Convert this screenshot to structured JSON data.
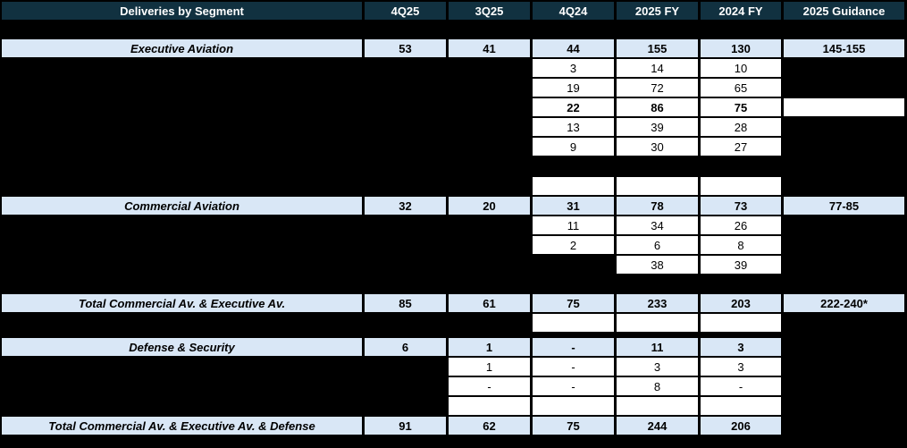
{
  "colors": {
    "header_bg": "#113140",
    "header_text": "#FFFFFF",
    "highlight_row_bg": "#D9E7F6",
    "cell_bg": "#FFFFFF",
    "background": "#000000",
    "body_text": "#000000"
  },
  "table": {
    "header": [
      "Deliveries by Segment",
      "4Q25",
      "3Q25",
      "4Q24",
      "2025 FY",
      "2024 FY",
      "2025 Guidance"
    ],
    "rows": [
      {
        "name": "executive-aviation",
        "cells": [
          "Executive Aviation",
          "53",
          "41",
          "44",
          "155",
          "130",
          "145-155"
        ]
      },
      {
        "name": "executive-sub-1",
        "cells": [
          "",
          "",
          "",
          "3",
          "14",
          "10",
          ""
        ]
      },
      {
        "name": "executive-sub-2",
        "cells": [
          "",
          "",
          "",
          "19",
          "72",
          "65",
          ""
        ]
      },
      {
        "name": "executive-sub-3-bold",
        "cells": [
          "",
          "",
          "",
          "22",
          "86",
          "75",
          ""
        ]
      },
      {
        "name": "executive-sub-4",
        "cells": [
          "",
          "",
          "",
          "13",
          "39",
          "28",
          ""
        ]
      },
      {
        "name": "executive-sub-5",
        "cells": [
          "",
          "",
          "",
          "9",
          "30",
          "27",
          ""
        ]
      },
      {
        "name": "empty-row-1",
        "cells": [
          "",
          "",
          "",
          "",
          "",
          "",
          ""
        ]
      },
      {
        "name": "commercial-aviation",
        "cells": [
          "Commercial Aviation",
          "32",
          "20",
          "31",
          "78",
          "73",
          "77-85"
        ]
      },
      {
        "name": "commercial-sub-1",
        "cells": [
          "",
          "",
          "",
          "11",
          "34",
          "26",
          ""
        ]
      },
      {
        "name": "commercial-sub-2",
        "cells": [
          "",
          "",
          "",
          "2",
          "6",
          "8",
          ""
        ]
      },
      {
        "name": "commercial-sub-3",
        "cells": [
          "",
          "",
          "",
          "",
          "38",
          "39",
          ""
        ]
      },
      {
        "name": "total-commercial-executive",
        "cells": [
          "Total Commercial Av. & Executive Av.",
          "85",
          "61",
          "75",
          "233",
          "203",
          "222-240*"
        ]
      },
      {
        "name": "empty-row-2",
        "cells": [
          "",
          "",
          "",
          "",
          "",
          "",
          ""
        ]
      },
      {
        "name": "defense-security",
        "cells": [
          "Defense & Security",
          "6",
          "1",
          "-",
          "11",
          "3",
          ""
        ]
      },
      {
        "name": "defense-sub-1",
        "cells": [
          "",
          "",
          "1",
          "-",
          "3",
          "3",
          ""
        ]
      },
      {
        "name": "defense-sub-2",
        "cells": [
          "",
          "",
          "-",
          "-",
          "8",
          "-",
          ""
        ]
      },
      {
        "name": "empty-row-3",
        "cells": [
          "",
          "",
          "",
          "",
          "",
          "",
          ""
        ]
      },
      {
        "name": "total-all",
        "cells": [
          "Total Commercial Av. & Executive Av. & Defense",
          "91",
          "62",
          "75",
          "244",
          "206",
          ""
        ]
      }
    ]
  }
}
